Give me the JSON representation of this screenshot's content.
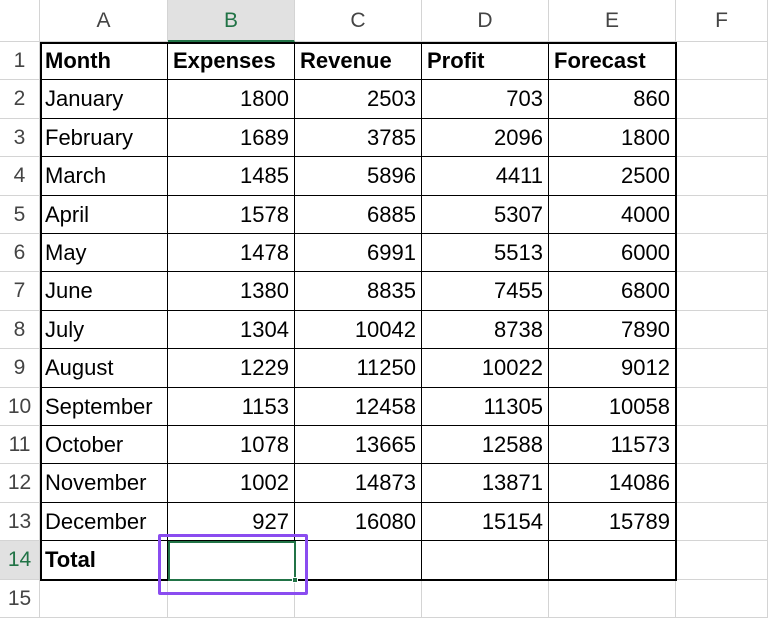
{
  "column_headers": [
    "A",
    "B",
    "C",
    "D",
    "E",
    "F"
  ],
  "row_numbers": [
    1,
    2,
    3,
    4,
    5,
    6,
    7,
    8,
    9,
    10,
    11,
    12,
    13,
    14,
    15
  ],
  "table": {
    "header": [
      "Month",
      "Expenses",
      "Revenue",
      "Profit",
      "Forecast"
    ],
    "rows": [
      [
        "January",
        1800,
        2503,
        703,
        860
      ],
      [
        "February",
        1689,
        3785,
        2096,
        1800
      ],
      [
        "March",
        1485,
        5896,
        4411,
        2500
      ],
      [
        "April",
        1578,
        6885,
        5307,
        4000
      ],
      [
        "May",
        1478,
        6991,
        5513,
        6000
      ],
      [
        "June",
        1380,
        8835,
        7455,
        6800
      ],
      [
        "July",
        1304,
        10042,
        8738,
        7890
      ],
      [
        "August",
        1229,
        11250,
        10022,
        9012
      ],
      [
        "September",
        1153,
        12458,
        11305,
        10058
      ],
      [
        "October",
        1078,
        13665,
        12588,
        11573
      ],
      [
        "November",
        1002,
        14873,
        13871,
        14086
      ],
      [
        "December",
        927,
        16080,
        15154,
        15789
      ]
    ],
    "total_label": "Total"
  }
}
